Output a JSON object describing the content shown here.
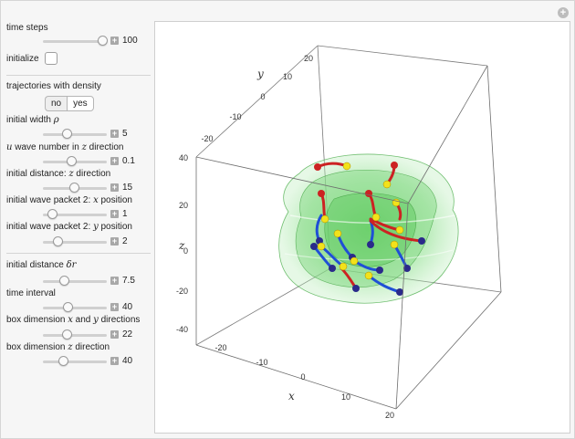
{
  "controls": {
    "time_steps": {
      "label": "time steps",
      "value": "100"
    },
    "initialize": {
      "label": "initialize"
    },
    "trajectories": {
      "label": "trajectories with density",
      "options": [
        "no",
        "yes"
      ],
      "selected": "yes"
    },
    "initial_width": {
      "label_prefix": "initial width ",
      "label_symbol": "ρ",
      "value": "5"
    },
    "wave_number": {
      "label_symbol": "u",
      "label_mid": " wave number in ",
      "label_symbol2": "z",
      "label_suffix": " direction",
      "value": "0.1"
    },
    "init_distance_z": {
      "label_prefix": "initial distance: ",
      "label_symbol": "z",
      "label_suffix": " direction",
      "value": "15"
    },
    "packet2_x": {
      "label_prefix": "initial wave packet 2: ",
      "label_symbol": "x",
      "label_suffix": " position",
      "value": "1"
    },
    "packet2_y": {
      "label_prefix": "initial wave packet 2: ",
      "label_symbol": "y",
      "label_suffix": " position",
      "value": "2"
    },
    "init_distance_dr": {
      "label_prefix": "initial distance ",
      "label_symbol": "δr",
      "value": "7.5"
    },
    "time_interval": {
      "label": "time interval",
      "value": "40"
    },
    "box_xy": {
      "label_prefix": "box dimension ",
      "label_symbol": "x",
      "label_mid": " and ",
      "label_symbol2": "y",
      "label_suffix": " directions",
      "value": "22"
    },
    "box_z": {
      "label_prefix": "box dimension ",
      "label_symbol": "z",
      "label_suffix": " direction",
      "value": "40"
    }
  },
  "plot": {
    "axis_labels": {
      "x": "x",
      "y": "y",
      "z": "z"
    },
    "x_ticks": [
      "-20",
      "-10",
      "0",
      "10",
      "20"
    ],
    "y_ticks": [
      "-20",
      "-10",
      "0",
      "10",
      "20"
    ],
    "z_ticks": [
      "-40",
      "-20",
      "0",
      "20",
      "40"
    ],
    "colors": {
      "density": "#7fd67f",
      "trajectory_red": "#cc2222",
      "trajectory_blue": "#1f4fd6",
      "marker_yellow": "#f2e21b",
      "marker_dark": "#2a2a8a"
    }
  }
}
